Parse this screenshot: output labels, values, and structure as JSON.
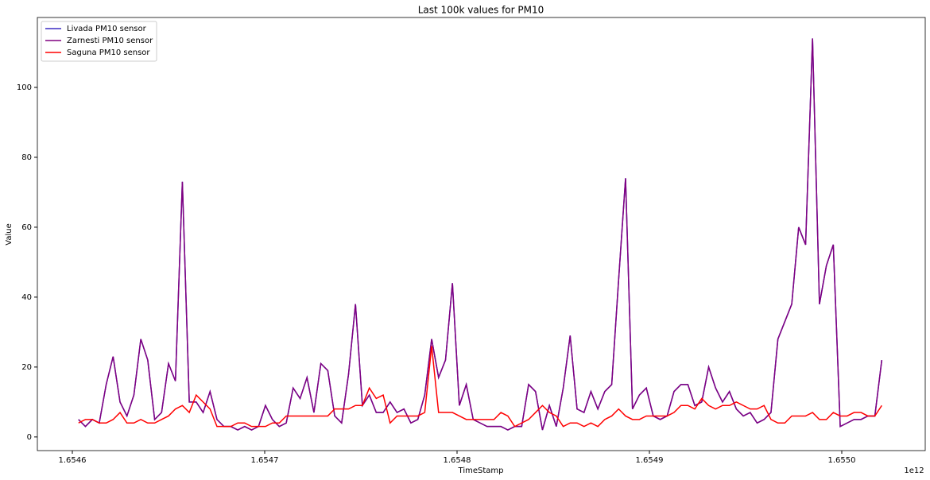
{
  "chart_data": {
    "type": "line",
    "title": "Last 100k values for PM10",
    "x_label": "TimeStamp",
    "y_label": "Value",
    "x_offset_label": "1e12",
    "x": [
      1654603200000,
      1654606800000,
      1654610400000,
      1654614000000,
      1654617600000,
      1654621200000,
      1654624800000,
      1654628400000,
      1654632000000,
      1654635600000,
      1654639200000,
      1654642800000,
      1654646400000,
      1654650000000,
      1654653600000,
      1654657200000,
      1654660800000,
      1654664400000,
      1654668000000,
      1654671600000,
      1654675200000,
      1654678800000,
      1654682400000,
      1654686000000,
      1654689600000,
      1654693200000,
      1654696800000,
      1654700400000,
      1654704000000,
      1654707600000,
      1654711200000,
      1654714800000,
      1654718400000,
      1654722000000,
      1654725600000,
      1654729200000,
      1654732800000,
      1654736400000,
      1654740000000,
      1654743600000,
      1654747200000,
      1654750800000,
      1654754400000,
      1654758000000,
      1654761600000,
      1654765200000,
      1654768800000,
      1654772400000,
      1654776000000,
      1654779600000,
      1654783200000,
      1654786800000,
      1654790400000,
      1654794000000,
      1654797600000,
      1654801200000,
      1654804800000,
      1654808400000,
      1654812000000,
      1654815600000,
      1654819200000,
      1654822800000,
      1654826400000,
      1654830000000,
      1654833600000,
      1654837200000,
      1654840800000,
      1654844400000,
      1654848000000,
      1654851600000,
      1654855200000,
      1654858800000,
      1654862400000,
      1654866000000,
      1654869600000,
      1654873200000,
      1654876800000,
      1654880400000,
      1654884000000,
      1654887600000,
      1654891200000,
      1654894800000,
      1654898400000,
      1654902000000,
      1654905600000,
      1654909200000,
      1654912800000,
      1654916400000,
      1654920000000,
      1654923600000,
      1654927200000,
      1654930800000,
      1654934400000,
      1654938000000,
      1654941600000,
      1654945200000,
      1654948800000,
      1654952400000,
      1654956000000,
      1654959600000,
      1654963200000,
      1654966800000,
      1654970400000,
      1654974000000,
      1654977600000,
      1654981200000,
      1654984800000,
      1654988400000,
      1654992000000,
      1654995600000,
      1654999200000,
      1655002800000,
      1655006400000,
      1655010000000,
      1655013600000,
      1655017200000,
      1655020800000
    ],
    "series": [
      {
        "name": "Livada PM10 sensor",
        "color": "#3b2cc4",
        "values": [
          5,
          3,
          5,
          4,
          15,
          23,
          10,
          6,
          12,
          28,
          22,
          5,
          7,
          21,
          16,
          73,
          10,
          10,
          7,
          13,
          5,
          3,
          3,
          2,
          3,
          2,
          3,
          9,
          5,
          3,
          4,
          14,
          11,
          17,
          7,
          21,
          19,
          6,
          4,
          18,
          38,
          9,
          12,
          7,
          7,
          10,
          7,
          8,
          4,
          5,
          12,
          28,
          17,
          22,
          44,
          9,
          15,
          5,
          4,
          3,
          3,
          3,
          2,
          3,
          3,
          15,
          13,
          2,
          9,
          3,
          14,
          29,
          8,
          7,
          13,
          8,
          13,
          15,
          45,
          74,
          8,
          12,
          14,
          6,
          5,
          6,
          13,
          15,
          15,
          9,
          10,
          20,
          14,
          10,
          13,
          8,
          6,
          7,
          4,
          5,
          7,
          28,
          33,
          38,
          60,
          55,
          114,
          38,
          49,
          55,
          3,
          4,
          5,
          5,
          6,
          6,
          22
        ]
      },
      {
        "name": "Zarnesti PM10 sensor",
        "color": "#800080",
        "values": [
          5,
          3,
          5,
          4,
          15,
          23,
          10,
          6,
          12,
          28,
          22,
          5,
          7,
          21,
          16,
          73,
          10,
          10,
          7,
          13,
          5,
          3,
          3,
          2,
          3,
          2,
          3,
          9,
          5,
          3,
          4,
          14,
          11,
          17,
          7,
          21,
          19,
          6,
          4,
          18,
          38,
          9,
          12,
          7,
          7,
          10,
          7,
          8,
          4,
          5,
          12,
          28,
          17,
          22,
          44,
          9,
          15,
          5,
          4,
          3,
          3,
          3,
          2,
          3,
          3,
          15,
          13,
          2,
          9,
          3,
          14,
          29,
          8,
          7,
          13,
          8,
          13,
          15,
          45,
          74,
          8,
          12,
          14,
          6,
          5,
          6,
          13,
          15,
          15,
          9,
          10,
          20,
          14,
          10,
          13,
          8,
          6,
          7,
          4,
          5,
          7,
          28,
          33,
          38,
          60,
          55,
          114,
          38,
          49,
          55,
          3,
          4,
          5,
          5,
          6,
          6,
          22
        ]
      },
      {
        "name": "Saguna PM10 sensor",
        "color": "#ff0000",
        "values": [
          4,
          5,
          5,
          4,
          4,
          5,
          7,
          4,
          4,
          5,
          4,
          4,
          5,
          6,
          8,
          9,
          7,
          12,
          10,
          8,
          3,
          3,
          3,
          4,
          4,
          3,
          3,
          3,
          4,
          4,
          6,
          6,
          6,
          6,
          6,
          6,
          6,
          8,
          8,
          8,
          9,
          9,
          14,
          11,
          12,
          4,
          6,
          6,
          6,
          6,
          7,
          26,
          7,
          7,
          7,
          6,
          5,
          5,
          5,
          5,
          5,
          7,
          6,
          3,
          4,
          5,
          7,
          9,
          7,
          6,
          3,
          4,
          4,
          3,
          4,
          3,
          5,
          6,
          8,
          6,
          5,
          5,
          6,
          6,
          6,
          6,
          7,
          9,
          9,
          8,
          11,
          9,
          8,
          9,
          9,
          10,
          9,
          8,
          8,
          9,
          5,
          4,
          4,
          6,
          6,
          6,
          7,
          5,
          5,
          7,
          6,
          6,
          7,
          7,
          6,
          6,
          9
        ]
      }
    ],
    "xlim": [
      1654581820000,
      1655043390000
    ],
    "xticks": [
      {
        "value": 1654600000000,
        "label": "1.6546"
      },
      {
        "value": 1654700000000,
        "label": "1.6547"
      },
      {
        "value": 1654800000000,
        "label": "1.6548"
      },
      {
        "value": 1654900000000,
        "label": "1.6549"
      },
      {
        "value": 1655000000000,
        "label": "1.6550"
      }
    ],
    "ylim": [
      -3.9,
      120
    ],
    "yticks": [
      0,
      20,
      40,
      60,
      80,
      100
    ],
    "grid": false,
    "legend": "upper left"
  }
}
